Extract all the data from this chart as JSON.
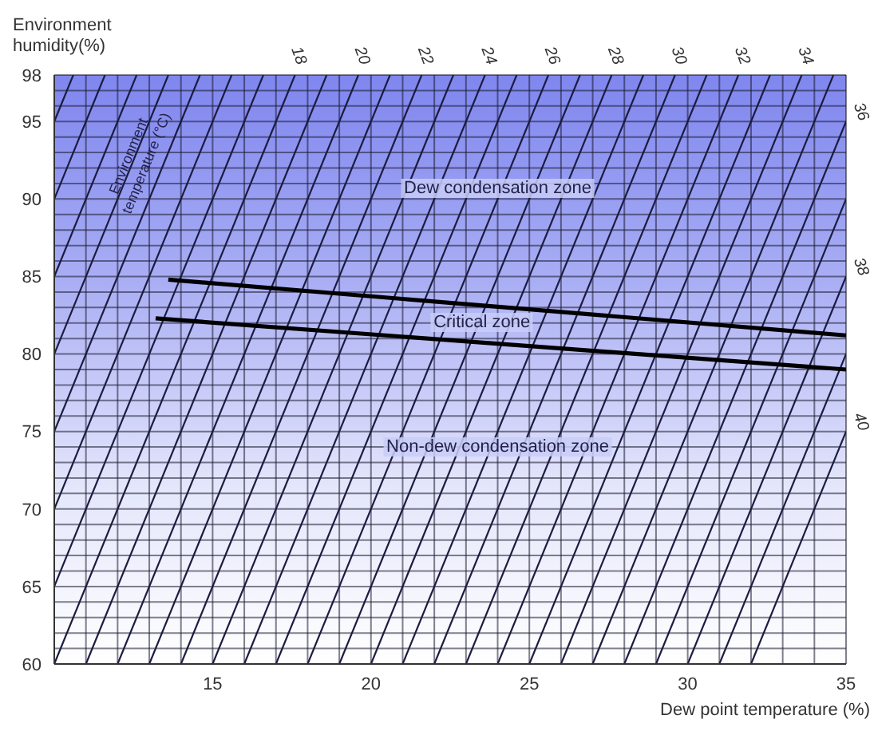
{
  "chart_data": {
    "type": "line",
    "xlabel": "Dew point temperature (%)",
    "ylabel": "Environment humidity(%)",
    "xlim": [
      10,
      35
    ],
    "ylim": [
      60,
      98
    ],
    "xticks": [
      {
        "value": 10,
        "label": null
      },
      {
        "value": 11,
        "label": null
      },
      {
        "value": 12,
        "label": null
      },
      {
        "value": 13,
        "label": null
      },
      {
        "value": 14,
        "label": null
      },
      15,
      {
        "value": 16,
        "label": null
      },
      {
        "value": 17,
        "label": null
      },
      {
        "value": 18,
        "label": null
      },
      {
        "value": 19,
        "label": null
      },
      20,
      {
        "value": 21,
        "label": null
      },
      {
        "value": 22,
        "label": null
      },
      {
        "value": 23,
        "label": null
      },
      {
        "value": 24,
        "label": null
      },
      25,
      {
        "value": 26,
        "label": null
      },
      {
        "value": 27,
        "label": null
      },
      {
        "value": 28,
        "label": null
      },
      {
        "value": 29,
        "label": null
      },
      30,
      {
        "value": 31,
        "label": null
      },
      {
        "value": 32,
        "label": null
      },
      {
        "value": 33,
        "label": null
      },
      {
        "value": 34,
        "label": null
      },
      35
    ],
    "yticks": [
      60,
      {
        "value": 61,
        "label": null
      },
      {
        "value": 62,
        "label": null
      },
      {
        "value": 63,
        "label": null
      },
      {
        "value": 64,
        "label": null
      },
      65,
      {
        "value": 66,
        "label": null
      },
      {
        "value": 67,
        "label": null
      },
      {
        "value": 68,
        "label": null
      },
      {
        "value": 69,
        "label": null
      },
      70,
      {
        "value": 71,
        "label": null
      },
      {
        "value": 72,
        "label": null
      },
      {
        "value": 73,
        "label": null
      },
      {
        "value": 74,
        "label": null
      },
      75,
      {
        "value": 76,
        "label": null
      },
      {
        "value": 77,
        "label": null
      },
      {
        "value": 78,
        "label": null
      },
      {
        "value": 79,
        "label": null
      },
      80,
      {
        "value": 81,
        "label": null
      },
      {
        "value": 82,
        "label": null
      },
      {
        "value": 83,
        "label": null
      },
      {
        "value": 84,
        "label": null
      },
      85,
      {
        "value": 86,
        "label": null
      },
      {
        "value": 87,
        "label": null
      },
      {
        "value": 88,
        "label": null
      },
      {
        "value": 89,
        "label": null
      },
      90,
      {
        "value": 91,
        "label": null
      },
      {
        "value": 92,
        "label": null
      },
      {
        "value": 93,
        "label": null
      },
      {
        "value": 94,
        "label": null
      },
      95,
      {
        "value": 96,
        "label": null
      },
      {
        "value": 97,
        "label": null
      },
      98
    ],
    "grid": true,
    "marker": "none",
    "series": [
      {
        "color": "#1c1c40",
        "x": [
          10,
          10.6
        ],
        "values": [
          95,
          98
        ]
      },
      {
        "color": "#1c1c40",
        "x": [
          10,
          11.6
        ],
        "values": [
          90,
          98
        ]
      },
      {
        "color": "#1c1c40",
        "x": [
          10,
          12.6
        ],
        "values": [
          85,
          98
        ]
      },
      {
        "color": "#1c1c40",
        "x": [
          10,
          13.6
        ],
        "values": [
          80,
          98
        ]
      },
      {
        "color": "#1c1c40",
        "x": [
          10,
          14.6
        ],
        "values": [
          75,
          98
        ]
      },
      {
        "color": "#1c1c40",
        "x": [
          10,
          15.6
        ],
        "values": [
          70,
          98
        ]
      },
      {
        "color": "#1c1c40",
        "x": [
          10,
          16.6
        ],
        "values": [
          65,
          98
        ]
      },
      {
        "name": "18",
        "color": "#1c1c40",
        "x": [
          10,
          17.6
        ],
        "values": [
          60,
          98
        ]
      },
      {
        "color": "#1c1c40",
        "x": [
          11,
          18.6
        ],
        "values": [
          60,
          98
        ]
      },
      {
        "name": "20",
        "color": "#1c1c40",
        "x": [
          12,
          19.6
        ],
        "values": [
          60,
          98
        ]
      },
      {
        "color": "#1c1c40",
        "x": [
          13,
          20.6
        ],
        "values": [
          60,
          98
        ]
      },
      {
        "name": "22",
        "color": "#1c1c40",
        "x": [
          14,
          21.6
        ],
        "values": [
          60,
          98
        ]
      },
      {
        "color": "#1c1c40",
        "x": [
          15,
          22.6
        ],
        "values": [
          60,
          98
        ]
      },
      {
        "name": "24",
        "color": "#1c1c40",
        "x": [
          16,
          23.6
        ],
        "values": [
          60,
          98
        ]
      },
      {
        "color": "#1c1c40",
        "x": [
          17,
          24.6
        ],
        "values": [
          60,
          98
        ]
      },
      {
        "name": "26",
        "color": "#1c1c40",
        "x": [
          18,
          25.6
        ],
        "values": [
          60,
          98
        ]
      },
      {
        "color": "#1c1c40",
        "x": [
          19,
          26.6
        ],
        "values": [
          60,
          98
        ]
      },
      {
        "name": "28",
        "color": "#1c1c40",
        "x": [
          20,
          27.6
        ],
        "values": [
          60,
          98
        ]
      },
      {
        "color": "#1c1c40",
        "x": [
          21,
          28.6
        ],
        "values": [
          60,
          98
        ]
      },
      {
        "name": "30",
        "color": "#1c1c40",
        "x": [
          22,
          29.6
        ],
        "values": [
          60,
          98
        ]
      },
      {
        "color": "#1c1c40",
        "x": [
          23,
          30.6
        ],
        "values": [
          60,
          98
        ]
      },
      {
        "name": "32",
        "color": "#1c1c40",
        "x": [
          24,
          31.6
        ],
        "values": [
          60,
          98
        ]
      },
      {
        "color": "#1c1c40",
        "x": [
          25,
          32.6
        ],
        "values": [
          60,
          98
        ]
      },
      {
        "name": "34",
        "color": "#1c1c40",
        "x": [
          26,
          33.6
        ],
        "values": [
          60,
          98
        ]
      },
      {
        "color": "#1c1c40",
        "x": [
          27,
          34.6
        ],
        "values": [
          60,
          98
        ]
      },
      {
        "name": "36",
        "color": "#1c1c40",
        "x": [
          28,
          35
        ],
        "values": [
          60,
          95
        ]
      },
      {
        "color": "#1c1c40",
        "x": [
          29,
          35
        ],
        "values": [
          60,
          90
        ]
      },
      {
        "name": "38",
        "color": "#1c1c40",
        "x": [
          30,
          35
        ],
        "values": [
          60,
          85
        ]
      },
      {
        "color": "#1c1c40",
        "x": [
          31,
          35
        ],
        "values": [
          60,
          80
        ]
      },
      {
        "name": "40",
        "color": "#1c1c40",
        "x": [
          32,
          35
        ],
        "values": [
          60,
          75
        ]
      },
      {
        "color": "#000000",
        "x": [
          13.6,
          35
        ],
        "values": [
          84.8,
          81.2
        ]
      },
      {
        "color": "#000000",
        "x": [
          13.2,
          35
        ],
        "values": [
          82.3,
          79
        ]
      }
    ],
    "annotations": [
      {
        "text": "Dew condensation zone",
        "x": 24,
        "y": 90.7
      },
      {
        "text": "Critical zone",
        "x": 23.5,
        "y": 82
      },
      {
        "text": "Non-dew condensation zone",
        "x": 24,
        "y": 74
      },
      {
        "text": "Environment temperature (°C)",
        "x": 12.6,
        "y": 92.5
      }
    ]
  }
}
